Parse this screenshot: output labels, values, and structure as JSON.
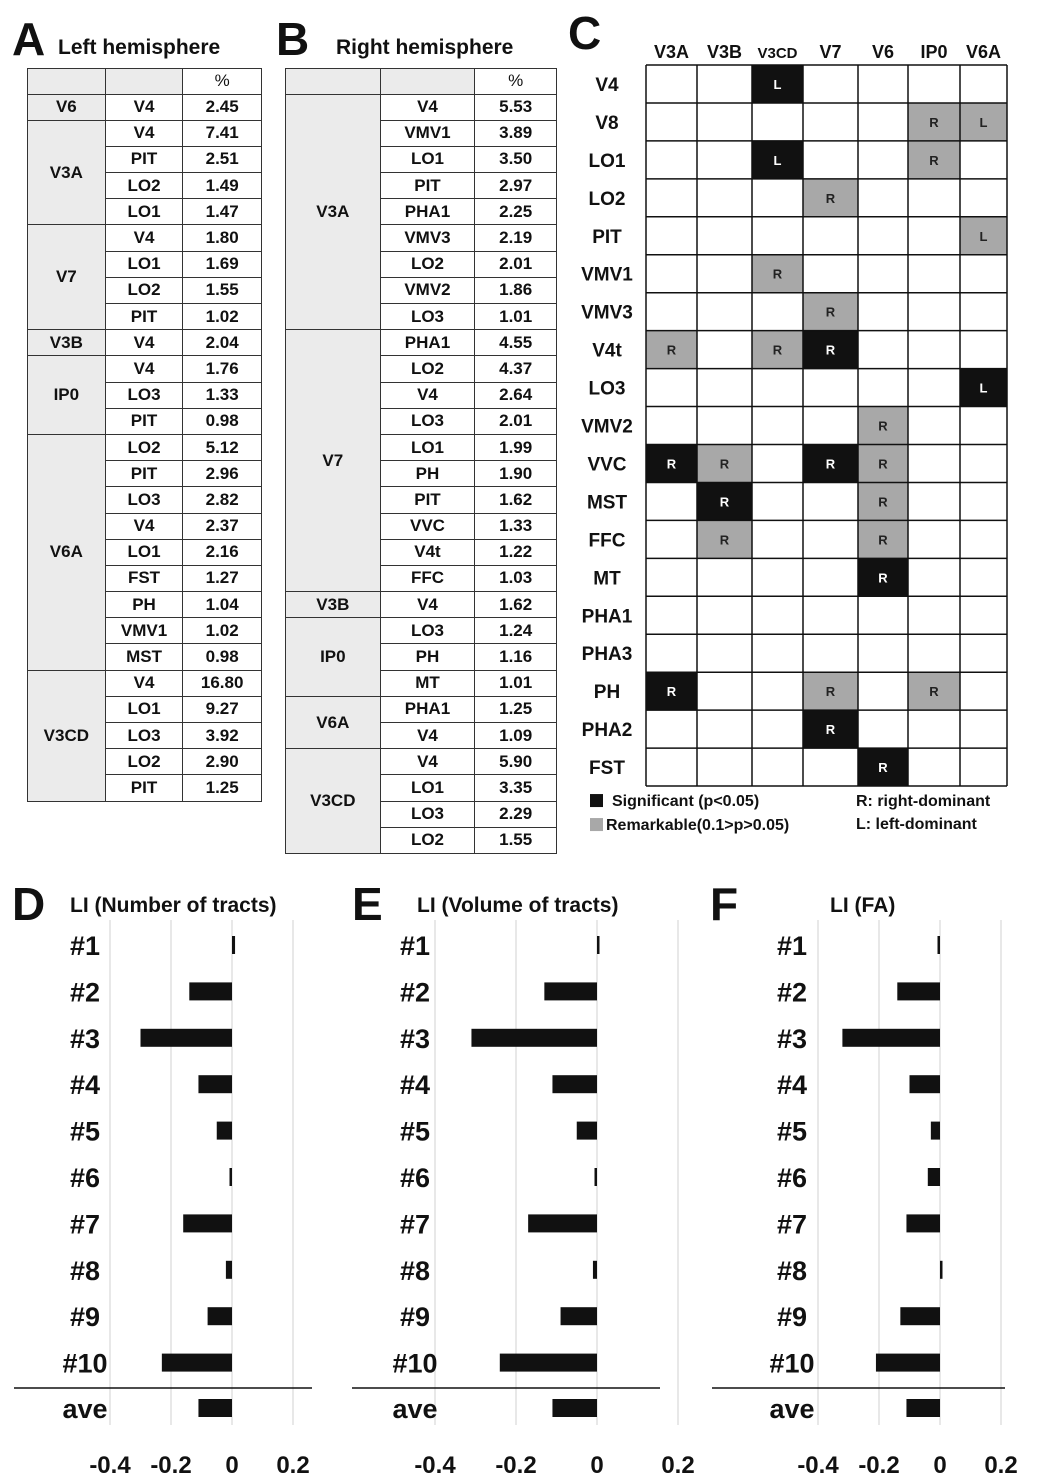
{
  "panel_A": {
    "letter": "A",
    "title": "Left hemisphere",
    "header_pct": "%",
    "groups": [
      {
        "area": "V6",
        "rows": [
          [
            "V4",
            "2.45"
          ]
        ]
      },
      {
        "area": "V3A",
        "rows": [
          [
            "V4",
            "7.41"
          ],
          [
            "PIT",
            "2.51"
          ],
          [
            "LO2",
            "1.49"
          ],
          [
            "LO1",
            "1.47"
          ]
        ]
      },
      {
        "area": "V7",
        "rows": [
          [
            "V4",
            "1.80"
          ],
          [
            "LO1",
            "1.69"
          ],
          [
            "LO2",
            "1.55"
          ],
          [
            "PIT",
            "1.02"
          ]
        ]
      },
      {
        "area": "V3B",
        "rows": [
          [
            "V4",
            "2.04"
          ]
        ]
      },
      {
        "area": "IP0",
        "rows": [
          [
            "V4",
            "1.76"
          ],
          [
            "LO3",
            "1.33"
          ],
          [
            "PIT",
            "0.98"
          ]
        ]
      },
      {
        "area": "V6A",
        "rows": [
          [
            "LO2",
            "5.12"
          ],
          [
            "PIT",
            "2.96"
          ],
          [
            "LO3",
            "2.82"
          ],
          [
            "V4",
            "2.37"
          ],
          [
            "LO1",
            "2.16"
          ],
          [
            "FST",
            "1.27"
          ],
          [
            "PH",
            "1.04"
          ],
          [
            "VMV1",
            "1.02"
          ],
          [
            "MST",
            "0.98"
          ]
        ]
      },
      {
        "area": "V3CD",
        "rows": [
          [
            "V4",
            "16.80"
          ],
          [
            "LO1",
            "9.27"
          ],
          [
            "LO3",
            "3.92"
          ],
          [
            "LO2",
            "2.90"
          ],
          [
            "PIT",
            "1.25"
          ]
        ]
      }
    ]
  },
  "panel_B": {
    "letter": "B",
    "title": "Right hemisphere",
    "header_pct": "%",
    "groups": [
      {
        "area": "V3A",
        "rows": [
          [
            "V4",
            "5.53"
          ],
          [
            "VMV1",
            "3.89"
          ],
          [
            "LO1",
            "3.50"
          ],
          [
            "PIT",
            "2.97"
          ],
          [
            "PHA1",
            "2.25"
          ],
          [
            "VMV3",
            "2.19"
          ],
          [
            "LO2",
            "2.01"
          ],
          [
            "VMV2",
            "1.86"
          ],
          [
            "LO3",
            "1.01"
          ]
        ]
      },
      {
        "area": "V7",
        "rows": [
          [
            "PHA1",
            "4.55"
          ],
          [
            "LO2",
            "4.37"
          ],
          [
            "V4",
            "2.64"
          ],
          [
            "LO3",
            "2.01"
          ],
          [
            "LO1",
            "1.99"
          ],
          [
            "PH",
            "1.90"
          ],
          [
            "PIT",
            "1.62"
          ],
          [
            "VVC",
            "1.33"
          ],
          [
            "V4t",
            "1.22"
          ],
          [
            "FFC",
            "1.03"
          ]
        ]
      },
      {
        "area": "V3B",
        "rows": [
          [
            "V4",
            "1.62"
          ]
        ]
      },
      {
        "area": "IP0",
        "rows": [
          [
            "LO3",
            "1.24"
          ],
          [
            "PH",
            "1.16"
          ],
          [
            "MT",
            "1.01"
          ]
        ]
      },
      {
        "area": "V6A",
        "rows": [
          [
            "PHA1",
            "1.25"
          ],
          [
            "V4",
            "1.09"
          ]
        ]
      },
      {
        "area": "V3CD",
        "rows": [
          [
            "V4",
            "5.90"
          ],
          [
            "LO1",
            "3.35"
          ],
          [
            "LO3",
            "2.29"
          ],
          [
            "LO2",
            "1.55"
          ]
        ]
      }
    ]
  },
  "panel_C": {
    "letter": "C",
    "columns": [
      "V3A",
      "V3B",
      "V3CD",
      "V7",
      "V6",
      "IP0",
      "V6A"
    ],
    "rows": [
      "V4",
      "V8",
      "LO1",
      "LO2",
      "PIT",
      "VMV1",
      "VMV3",
      "V4t",
      "LO3",
      "VMV2",
      "VVC",
      "MST",
      "FFC",
      "MT",
      "PHA1",
      "PHA3",
      "PH",
      "PHA2",
      "FST"
    ],
    "cells": [
      {
        "row": 0,
        "col": 2,
        "level": "significant",
        "text": "L"
      },
      {
        "row": 1,
        "col": 5,
        "level": "remarkable",
        "text": "R"
      },
      {
        "row": 1,
        "col": 6,
        "level": "remarkable",
        "text": "L"
      },
      {
        "row": 2,
        "col": 2,
        "level": "significant",
        "text": "L"
      },
      {
        "row": 2,
        "col": 5,
        "level": "remarkable",
        "text": "R"
      },
      {
        "row": 3,
        "col": 3,
        "level": "remarkable",
        "text": "R"
      },
      {
        "row": 4,
        "col": 6,
        "level": "remarkable",
        "text": "L"
      },
      {
        "row": 5,
        "col": 2,
        "level": "remarkable",
        "text": "R"
      },
      {
        "row": 6,
        "col": 3,
        "level": "remarkable",
        "text": "R"
      },
      {
        "row": 7,
        "col": 0,
        "level": "remarkable",
        "text": "R"
      },
      {
        "row": 7,
        "col": 2,
        "level": "remarkable",
        "text": "R"
      },
      {
        "row": 7,
        "col": 3,
        "level": "significant",
        "text": "R"
      },
      {
        "row": 8,
        "col": 6,
        "level": "significant",
        "text": "L"
      },
      {
        "row": 9,
        "col": 4,
        "level": "remarkable",
        "text": "R"
      },
      {
        "row": 10,
        "col": 0,
        "level": "significant",
        "text": "R"
      },
      {
        "row": 10,
        "col": 1,
        "level": "remarkable",
        "text": "R"
      },
      {
        "row": 10,
        "col": 3,
        "level": "significant",
        "text": "R"
      },
      {
        "row": 10,
        "col": 4,
        "level": "remarkable",
        "text": "R"
      },
      {
        "row": 11,
        "col": 1,
        "level": "significant",
        "text": "R"
      },
      {
        "row": 11,
        "col": 4,
        "level": "remarkable",
        "text": "R"
      },
      {
        "row": 12,
        "col": 1,
        "level": "remarkable",
        "text": "R"
      },
      {
        "row": 12,
        "col": 4,
        "level": "remarkable",
        "text": "R"
      },
      {
        "row": 13,
        "col": 4,
        "level": "significant",
        "text": "R"
      },
      {
        "row": 16,
        "col": 0,
        "level": "significant",
        "text": "R"
      },
      {
        "row": 16,
        "col": 3,
        "level": "remarkable",
        "text": "R"
      },
      {
        "row": 16,
        "col": 5,
        "level": "remarkable",
        "text": "R"
      },
      {
        "row": 17,
        "col": 3,
        "level": "significant",
        "text": "R"
      },
      {
        "row": 18,
        "col": 4,
        "level": "significant",
        "text": "R"
      }
    ],
    "legend": {
      "significant": "Significant (p<0.05)",
      "remarkable": "Remarkable(0.1>p>0.05)",
      "right": "R:  right-dominant",
      "left": "L:   left-dominant"
    },
    "colors": {
      "significant": "#111111",
      "remarkable": "#a8a8a8"
    }
  },
  "chart_data": [
    {
      "type": "bar",
      "panel": "D",
      "title": "LI (Number of tracts)",
      "categories": [
        "#1",
        "#2",
        "#3",
        "#4",
        "#5",
        "#6",
        "#7",
        "#8",
        "#9",
        "#10",
        "ave"
      ],
      "values": [
        0.01,
        -0.14,
        -0.3,
        -0.11,
        -0.05,
        -0.003,
        -0.16,
        -0.02,
        -0.08,
        -0.23,
        -0.11
      ],
      "xlim": [
        -0.4,
        0.2
      ],
      "xticks": [
        "-0.4",
        "-0.2",
        "0",
        "0.2"
      ],
      "orientation": "horizontal",
      "grid": true,
      "color": "#111111"
    },
    {
      "type": "bar",
      "panel": "E",
      "title": "LI  (Volume of tracts)",
      "categories": [
        "#1",
        "#2",
        "#3",
        "#4",
        "#5",
        "#6",
        "#7",
        "#8",
        "#9",
        "#10",
        "ave"
      ],
      "values": [
        0.004,
        -0.13,
        -0.31,
        -0.11,
        -0.05,
        -0.005,
        -0.17,
        -0.01,
        -0.09,
        -0.24,
        -0.11
      ],
      "xlim": [
        -0.4,
        0.2
      ],
      "xticks": [
        "-0.4",
        "-0.2",
        "0",
        "0.2"
      ],
      "orientation": "horizontal",
      "grid": true,
      "color": "#111111"
    },
    {
      "type": "bar",
      "panel": "F",
      "title": "LI  (FA)",
      "categories": [
        "#1",
        "#2",
        "#3",
        "#4",
        "#5",
        "#6",
        "#7",
        "#8",
        "#9",
        "#10",
        "ave"
      ],
      "values": [
        -0.003,
        -0.14,
        -0.32,
        -0.1,
        -0.03,
        -0.04,
        -0.11,
        0.004,
        -0.13,
        -0.21,
        -0.11
      ],
      "xlim": [
        -0.4,
        0.2
      ],
      "xticks": [
        "-0.4",
        "-0.2",
        "0",
        "0.2"
      ],
      "orientation": "horizontal",
      "grid": true,
      "color": "#111111"
    }
  ],
  "panel_letters_charts": [
    "D",
    "E",
    "F"
  ]
}
